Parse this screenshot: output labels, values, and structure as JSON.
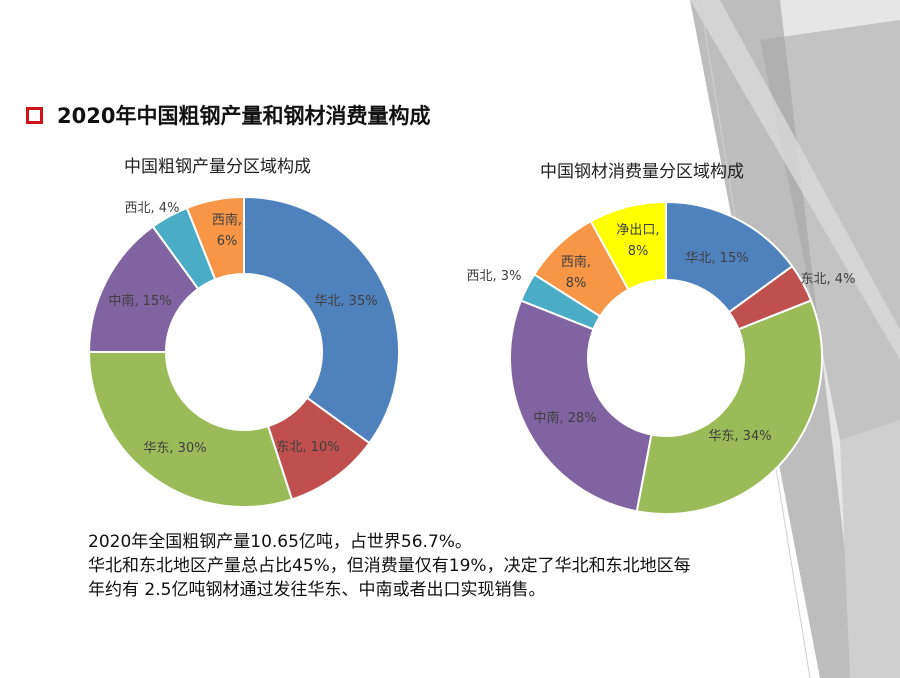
{
  "slide": {
    "title": "2020年中国粗钢产量和钢材消费量构成",
    "accent_color": "#d0121b",
    "bullet_icon": "square-bullet-icon"
  },
  "summary": {
    "line1": "2020年全国粗钢产量10.65亿吨，占世界56.7%。",
    "line2": "华北和东北地区产量总占比45%，但消费量仅有19%，决定了华北和东北地区每",
    "line3": "年约有 2.5亿吨钢材通过发往华东、中南或者出口实现销售。"
  },
  "chart_data": [
    {
      "type": "pie",
      "style": "donut",
      "title": "中国粗钢产量分区域构成",
      "slices": [
        {
          "name": "华北",
          "value": 35,
          "label": "华北, 35%",
          "color": "#4f81bd"
        },
        {
          "name": "东北",
          "value": 10,
          "label": "东北, 10%",
          "color": "#c0504d"
        },
        {
          "name": "华东",
          "value": 30,
          "label": "华东, 30%",
          "color": "#9bbb59"
        },
        {
          "name": "中南",
          "value": 15,
          "label": "中南, 15%",
          "color": "#8064a2"
        },
        {
          "name": "西北",
          "value": 4,
          "label": "西北, 4%",
          "color": "#4bacc6"
        },
        {
          "name": "西南",
          "value": 6,
          "label": "西南,|6%",
          "color": "#f79646"
        }
      ]
    },
    {
      "type": "pie",
      "style": "donut",
      "title": "中国钢材消费量分区域构成",
      "slices": [
        {
          "name": "华北",
          "value": 15,
          "label": "华北, 15%",
          "color": "#4f81bd"
        },
        {
          "name": "东北",
          "value": 4,
          "label": "东北, 4%",
          "color": "#c0504d"
        },
        {
          "name": "华东",
          "value": 34,
          "label": "华东, 34%",
          "color": "#9bbb59"
        },
        {
          "name": "中南",
          "value": 28,
          "label": "中南, 28%",
          "color": "#8064a2"
        },
        {
          "name": "西北",
          "value": 3,
          "label": "西北, 3%",
          "color": "#4bacc6"
        },
        {
          "name": "西南",
          "value": 8,
          "label": "西南,|8%",
          "color": "#f79646"
        },
        {
          "name": "净出口",
          "value": 8,
          "label": "净出口,|8%",
          "color": "#ffff00"
        }
      ]
    }
  ]
}
